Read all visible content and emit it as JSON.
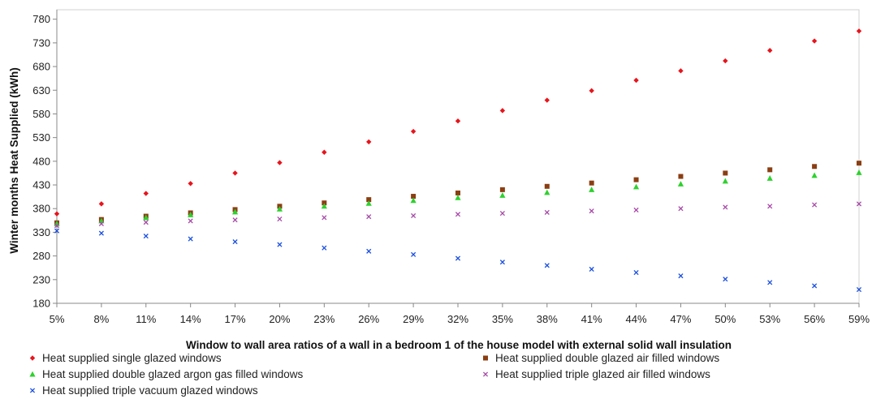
{
  "chart_data": {
    "type": "scatter",
    "xlabel": "Window to wall area ratios of a wall in a bedroom 1 of the  house model with external solid wall insulation",
    "ylabel": "Winter months Heat Supplied (kWh)",
    "categories": [
      "5%",
      "8%",
      "11%",
      "14%",
      "17%",
      "20%",
      "23%",
      "26%",
      "29%",
      "32%",
      "35%",
      "38%",
      "41%",
      "44%",
      "47%",
      "50%",
      "53%",
      "56%",
      "59%"
    ],
    "ylim": [
      180,
      800
    ],
    "yticks": [
      180,
      230,
      280,
      330,
      380,
      430,
      480,
      530,
      580,
      630,
      680,
      730,
      780
    ],
    "grid": true,
    "legend_position": "bottom",
    "series": [
      {
        "name": "Heat supplied single glazed windows",
        "marker": "diamond",
        "color": "#e8141c",
        "values": [
          369,
          390,
          412,
          433,
          455,
          477,
          499,
          521,
          543,
          565,
          587,
          609,
          629,
          651,
          671,
          692,
          714,
          734,
          755
        ]
      },
      {
        "name": "Heat supplied double glazed air filled windows",
        "marker": "square",
        "color": "#8b3e12",
        "values": [
          350,
          357,
          364,
          371,
          378,
          385,
          392,
          399,
          406,
          413,
          420,
          427,
          434,
          441,
          448,
          455,
          462,
          469,
          476
        ]
      },
      {
        "name": "Heat supplied double glazed argon gas filled windows",
        "marker": "triangle",
        "color": "#2fd12f",
        "values": [
          348,
          354,
          361,
          367,
          373,
          379,
          385,
          391,
          397,
          403,
          408,
          414,
          420,
          426,
          432,
          438,
          444,
          450,
          456
        ]
      },
      {
        "name": "Heat supplied triple glazed air filled windows",
        "marker": "x",
        "color": "#a64aa6",
        "values": [
          344,
          348,
          351,
          354,
          356,
          358,
          361,
          363,
          365,
          368,
          370,
          372,
          375,
          377,
          380,
          383,
          385,
          388,
          390
        ]
      },
      {
        "name": "Heat supplied triple vacuum glazed windows",
        "marker": "x",
        "color": "#1a4fe0",
        "values": [
          333,
          328,
          322,
          316,
          310,
          304,
          297,
          290,
          283,
          275,
          267,
          260,
          252,
          245,
          238,
          231,
          224,
          217,
          209
        ]
      }
    ]
  }
}
